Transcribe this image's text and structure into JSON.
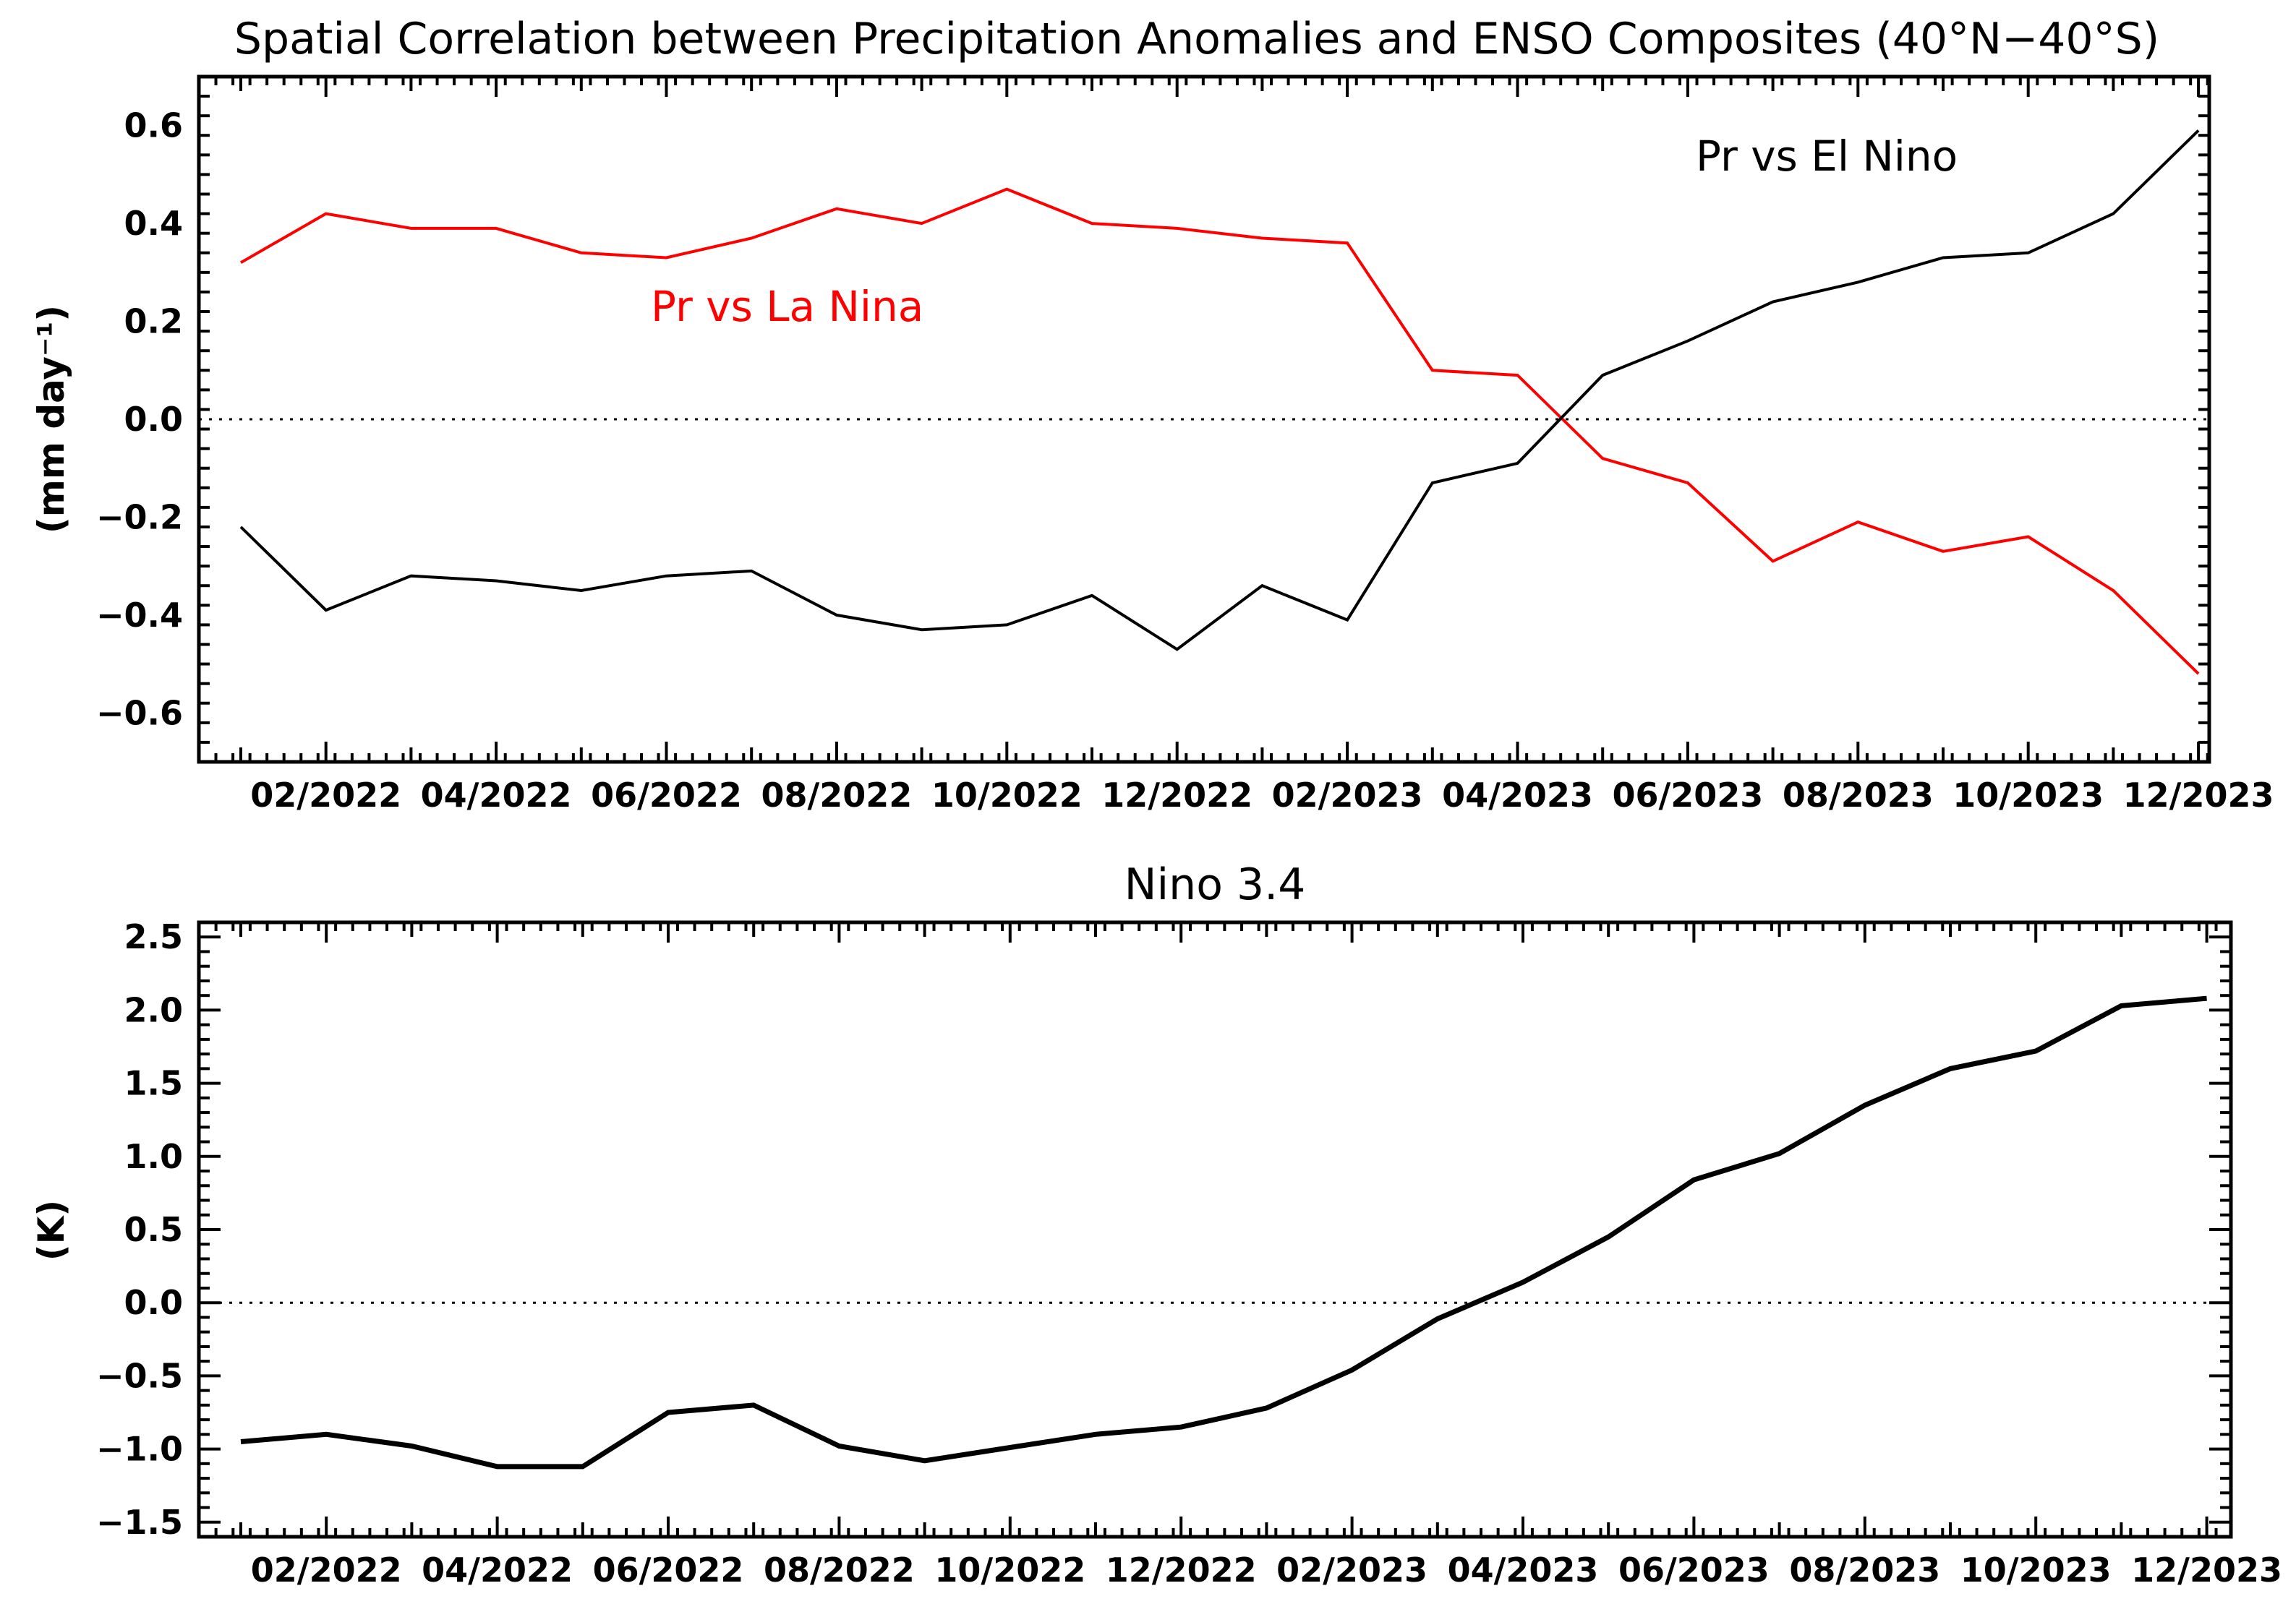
{
  "chart_data": [
    {
      "type": "line",
      "title": "Spatial Correlation between Precipitation Anomalies and ENSO Composites (40°N−40°S)",
      "ylabel": "(mm day⁻¹)",
      "xlabel": "",
      "ylim": [
        -0.7,
        0.7
      ],
      "yticks": [
        -0.6,
        -0.4,
        -0.2,
        0.0,
        0.2,
        0.4,
        0.6
      ],
      "ytick_labels": [
        "−0.6",
        "−0.4",
        "−0.2",
        "0.0",
        "0.2",
        "0.4",
        "0.6"
      ],
      "x_months": [
        "01/2022",
        "02/2022",
        "03/2022",
        "04/2022",
        "05/2022",
        "06/2022",
        "07/2022",
        "08/2022",
        "09/2022",
        "10/2022",
        "11/2022",
        "12/2022",
        "01/2023",
        "02/2023",
        "03/2023",
        "04/2023",
        "05/2023",
        "06/2023",
        "07/2023",
        "08/2023",
        "09/2023",
        "10/2023",
        "11/2023",
        "12/2023"
      ],
      "xtick_labels": [
        "02/2022",
        "04/2022",
        "06/2022",
        "08/2022",
        "10/2022",
        "12/2022",
        "02/2023",
        "04/2023",
        "06/2023",
        "08/2023",
        "10/2023",
        "12/2023"
      ],
      "zero_line": true,
      "series": [
        {
          "name": "Pr vs La Nina",
          "color": "#ff0000",
          "values": [
            0.32,
            0.42,
            0.39,
            0.39,
            0.34,
            0.33,
            0.37,
            0.43,
            0.4,
            0.47,
            0.4,
            0.39,
            0.37,
            0.36,
            0.1,
            0.09,
            -0.08,
            -0.13,
            -0.29,
            -0.21,
            -0.27,
            -0.24,
            -0.35,
            -0.52
          ]
        },
        {
          "name": "Pr vs El Nino",
          "color": "#000000",
          "values": [
            -0.22,
            -0.39,
            -0.32,
            -0.33,
            -0.35,
            -0.32,
            -0.31,
            -0.4,
            -0.43,
            -0.42,
            -0.36,
            -0.47,
            -0.34,
            -0.41,
            -0.13,
            -0.09,
            0.09,
            0.16,
            0.24,
            0.28,
            0.33,
            0.34,
            0.42,
            0.59
          ]
        }
      ]
    },
    {
      "type": "line",
      "title": "Nino 3.4",
      "ylabel": "(K)",
      "xlabel": "",
      "ylim": [
        -1.6,
        2.6
      ],
      "yticks": [
        -1.5,
        -1.0,
        -0.5,
        0.0,
        0.5,
        1.0,
        1.5,
        2.0,
        2.5
      ],
      "ytick_labels": [
        "−1.5",
        "−1.0",
        "−0.5",
        "0.0",
        "0.5",
        "1.0",
        "1.5",
        "2.0",
        "2.5"
      ],
      "x_months": [
        "01/2022",
        "02/2022",
        "03/2022",
        "04/2022",
        "05/2022",
        "06/2022",
        "07/2022",
        "08/2022",
        "09/2022",
        "10/2022",
        "11/2022",
        "12/2022",
        "01/2023",
        "02/2023",
        "03/2023",
        "04/2023",
        "05/2023",
        "06/2023",
        "07/2023",
        "08/2023",
        "09/2023",
        "10/2023",
        "11/2023",
        "12/2023"
      ],
      "xtick_labels": [
        "02/2022",
        "04/2022",
        "06/2022",
        "08/2022",
        "10/2022",
        "12/2022",
        "02/2023",
        "04/2023",
        "06/2023",
        "08/2023",
        "10/2023",
        "12/2023"
      ],
      "zero_line": true,
      "series": [
        {
          "name": "Nino 3.4",
          "color": "#000000",
          "values": [
            -0.95,
            -0.9,
            -0.98,
            -1.12,
            -1.12,
            -0.75,
            -0.7,
            -0.98,
            -1.08,
            -0.99,
            -0.9,
            -0.85,
            -0.72,
            -0.46,
            -0.11,
            0.14,
            0.45,
            0.84,
            1.02,
            1.35,
            1.6,
            1.72,
            2.03,
            2.08
          ]
        }
      ]
    }
  ]
}
